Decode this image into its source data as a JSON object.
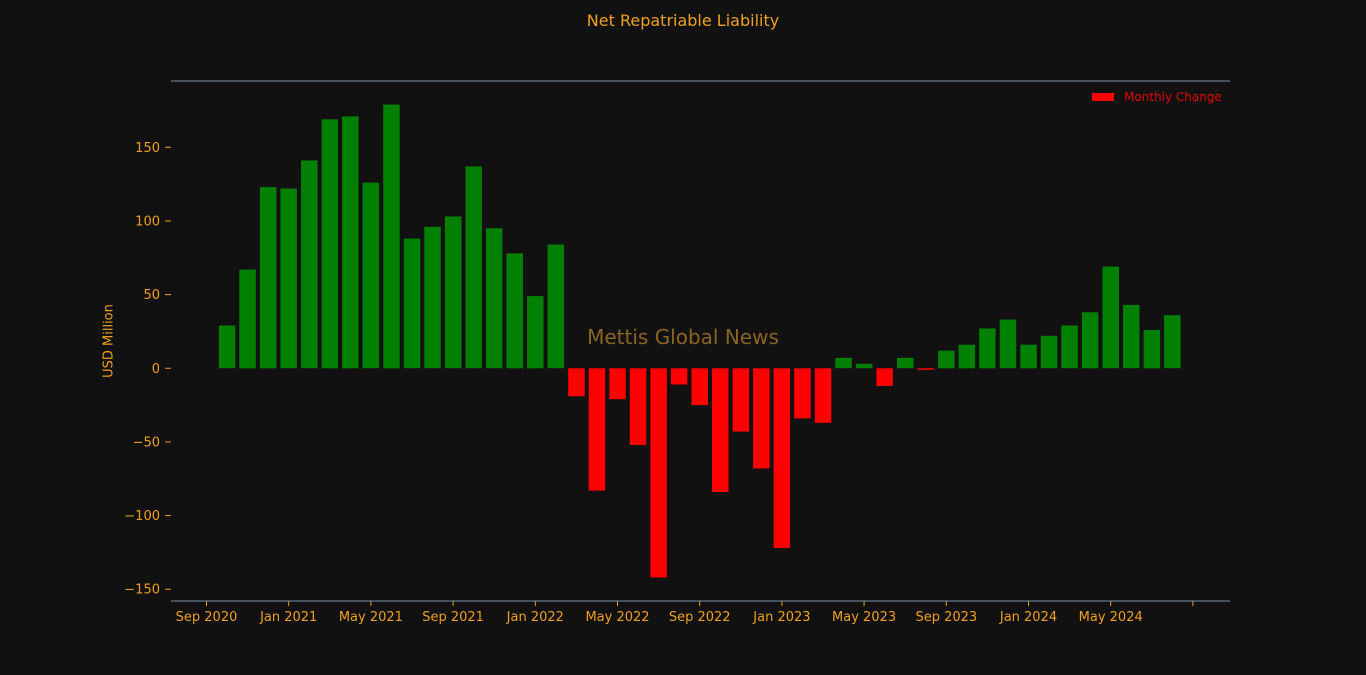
{
  "chart_data": {
    "type": "bar",
    "title": "Net Repatriable Liability",
    "xlabel": "",
    "ylabel": "USD Million",
    "watermark": "Mettis Global News",
    "legend": {
      "label": "Monthly Change",
      "placement": "top-right"
    },
    "colors": {
      "positive": "#008000",
      "negative": "#ff0000",
      "text": "#f0a01c",
      "background": "#111111",
      "axis": "#7f8fa6"
    },
    "ylim": [
      -158,
      195
    ],
    "yticks": [
      -150,
      -100,
      -50,
      0,
      50,
      100,
      150
    ],
    "ytick_labels": [
      "−150",
      "−100",
      "−50",
      "0",
      "50",
      "100",
      "150"
    ],
    "xticks": [
      "2020-09",
      "2021-01",
      "2021-05",
      "2021-09",
      "2022-01",
      "2022-05",
      "2022-09",
      "2023-01",
      "2023-05",
      "2023-09",
      "2024-01",
      "2024-05",
      "2024-09"
    ],
    "xtick_labels": [
      "Sep 2020",
      "Jan 2021",
      "May 2021",
      "Sep 2021",
      "Jan 2022",
      "May 2022",
      "Sep 2022",
      "Jan 2023",
      "May 2023",
      "Sep 2023",
      "Jan 2024",
      "May 2024",
      ""
    ],
    "grid": false,
    "x": [
      "2020-10",
      "2020-11",
      "2020-12",
      "2021-01",
      "2021-02",
      "2021-03",
      "2021-04",
      "2021-05",
      "2021-06",
      "2021-07",
      "2021-08",
      "2021-09",
      "2021-10",
      "2021-11",
      "2021-12",
      "2022-01",
      "2022-02",
      "2022-03",
      "2022-04",
      "2022-05",
      "2022-06",
      "2022-07",
      "2022-08",
      "2022-09",
      "2022-10",
      "2022-11",
      "2022-12",
      "2023-01",
      "2023-02",
      "2023-03",
      "2023-04",
      "2023-05",
      "2023-06",
      "2023-07",
      "2023-08",
      "2023-09",
      "2023-10",
      "2023-11",
      "2023-12",
      "2024-01",
      "2024-02",
      "2024-03",
      "2024-04",
      "2024-05",
      "2024-06",
      "2024-07",
      "2024-08"
    ],
    "values": [
      29,
      67,
      123,
      122,
      141,
      169,
      171,
      126,
      179,
      88,
      96,
      103,
      137,
      95,
      78,
      49,
      84,
      -19,
      -83,
      -21,
      -52,
      -142,
      -11,
      -25,
      -84,
      -43,
      -68,
      -122,
      -34,
      -37,
      7,
      3,
      -12,
      7,
      -1,
      12,
      16,
      27,
      33,
      16,
      22,
      29,
      38,
      69,
      43,
      26,
      36
    ]
  }
}
